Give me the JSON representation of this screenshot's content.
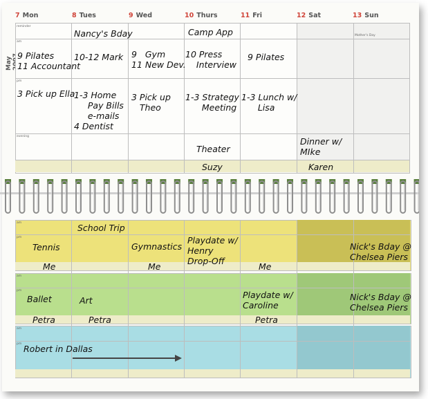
{
  "month": "May 2007",
  "top_days": [
    {
      "num": "7",
      "name": "Mon"
    },
    {
      "num": "8",
      "name": "Tues"
    },
    {
      "num": "9",
      "name": "Wed"
    },
    {
      "num": "10",
      "name": "Thurs"
    },
    {
      "num": "11",
      "name": "Fri"
    },
    {
      "num": "12",
      "name": "Sat"
    },
    {
      "num": "13",
      "name": "Sun"
    }
  ],
  "section_labels": {
    "reminder": "reminder",
    "am": "am",
    "pm": "pm",
    "evening": "evening",
    "holiday": "Mother's Day"
  },
  "top_entries": {
    "tue_reminder": "Nancy's Bday",
    "thu_reminder": "Camp App",
    "mon_am": "9 Pilates\n11 Accountant",
    "tue_am": "10-12 Mark",
    "wed_am": "9   Gym\n11 New Dev.",
    "thu_am": "10 Press\n    Interview",
    "fri_am": "9 Pilates",
    "mon_pm": "3 Pick up Ella",
    "tue_pm": "1-3 Home\n     Pay Bills\n     e-mails\n4 Dentist",
    "wed_pm": "3 Pick up\n   Theo",
    "thu_pm": "1-3 Strategy\n      Meeting",
    "fri_pm": "1-3 Lunch w/\n      Lisa",
    "thu_evening": "Theater",
    "sat_evening": "Dinner w/\nMIke",
    "thu_footer": "Suzy",
    "sat_footer": "Karen"
  },
  "bottom": {
    "yellow": {
      "tue_am": "School Trip",
      "mon_pm": "Tennis",
      "wed_pm": "Gymnastics",
      "thu_pm": "Playdate w/\nHenry\nDrop-Off",
      "sun_pm": "Nick's Bday @\nChelsea Piers",
      "mon_foot": "Me",
      "wed_foot": "Me",
      "fri_foot": "Me"
    },
    "green": {
      "mon_pm": "Ballet",
      "tue_pm": "Art",
      "fri_pm": "Playdate w/\nCaroline",
      "sun_pm": "Nick's Bday @\nChelsea Piers",
      "mon_foot": "Petra",
      "tue_foot": "Petra",
      "fri_foot": "Petra"
    },
    "blue": {
      "mon_pm": "Robert in Dallas"
    }
  },
  "colors": {
    "yellow": "#ede27a",
    "yellow_weekend": "#c9bf56",
    "green": "#b9df8d",
    "green_weekend": "#9fc878",
    "blue": "#a9dde4",
    "blue_weekend": "#93c8cf",
    "footer": "#eeecc9",
    "date_red": "#d0453a"
  }
}
